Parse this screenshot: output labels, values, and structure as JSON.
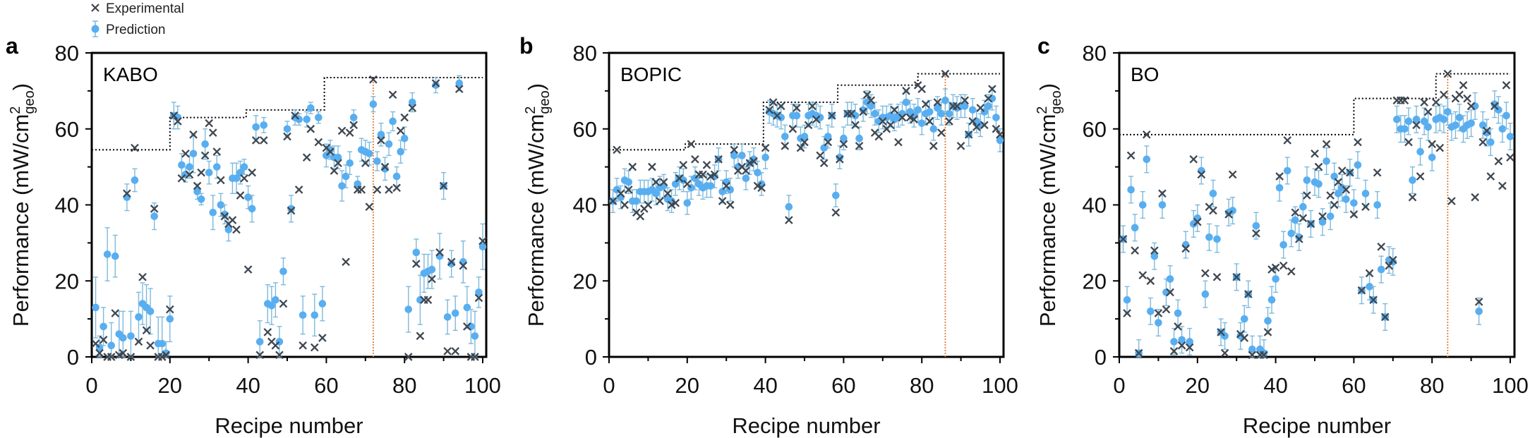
{
  "legend": {
    "experimental": "Experimental",
    "prediction": "Prediction"
  },
  "colors": {
    "prediction": "#58aef0",
    "error_bar": "#7db9dc",
    "experimental": "#3f4750",
    "best_so_far": "#000000",
    "best_marker": "#e0803a"
  },
  "chart_data": [
    {
      "type": "scatter",
      "panel_letter": "a",
      "title": "KABO",
      "xlabel": "Recipe number",
      "ylabel": "Performance (mW/cm",
      "ylabel_sup": "2",
      "ylabel_sub": "geo",
      "ylabel_close": ")",
      "xlim": [
        0,
        100
      ],
      "ylim": [
        0,
        80
      ],
      "xticks": [
        "0",
        "20",
        "40",
        "60",
        "80",
        "100"
      ],
      "yticks": [
        "0",
        "20",
        "40",
        "60",
        "80"
      ],
      "best_recipe": 72,
      "best_so_far_steps": [
        [
          0,
          54.5
        ],
        [
          20,
          63
        ],
        [
          39.5,
          65
        ],
        [
          59.5,
          73.5
        ],
        [
          100,
          73.5
        ]
      ],
      "experimental": [
        3.5,
        1,
        4.5,
        0,
        0,
        11.5,
        0.5,
        1,
        43,
        0,
        55,
        4,
        21,
        7,
        3,
        39,
        0,
        0,
        0.5,
        12.5,
        63.5,
        62,
        47,
        53.5,
        48,
        58.5,
        45,
        48.5,
        53,
        61.5,
        59,
        54,
        46.5,
        37,
        35,
        36,
        33.5,
        42.5,
        47,
        23,
        48.5,
        57,
        0.5,
        57,
        6.5,
        4,
        3,
        0.5,
        14,
        58,
        38.5,
        63.5,
        44,
        3,
        52.5,
        60,
        2.5,
        56.5,
        5,
        55,
        54,
        49,
        51,
        59.5,
        25,
        59,
        61,
        44,
        44,
        51,
        39.5,
        73,
        44,
        57,
        50,
        44,
        69,
        44.5,
        59.5,
        63,
        0,
        65.5,
        24.5,
        5.5,
        15,
        15,
        20.5,
        72,
        27.5,
        45,
        1.5,
        25,
        1.5,
        70.5,
        24,
        8,
        0,
        0,
        15.5,
        30.5
      ],
      "prediction": [
        13,
        2.5,
        8,
        27,
        3,
        26.5,
        6,
        5,
        42,
        5.5,
        46.5,
        10.5,
        14,
        13,
        12,
        37,
        3.5,
        3.5,
        1,
        10,
        63.5,
        63,
        50.5,
        48,
        50,
        53.5,
        43.5,
        41.5,
        56,
        48.5,
        38,
        50,
        40,
        37.5,
        33.5,
        47,
        47,
        48.5,
        50,
        42,
        39,
        60.5,
        4,
        61,
        14,
        13.5,
        15,
        4,
        22.5,
        60,
        39,
        63,
        62.5,
        11,
        62.5,
        65.5,
        11,
        63,
        14,
        53,
        54.5,
        52.5,
        52.5,
        45,
        47.5,
        51,
        63,
        45.5,
        54.5,
        54,
        53.5,
        66.5,
        51.5,
        58.5,
        49.5,
        56,
        62,
        47.5,
        54,
        57.5,
        12.5,
        67,
        27.5,
        15,
        22,
        22.5,
        23,
        71.5,
        26.5,
        45,
        10.5,
        24.5,
        11.5,
        72,
        25,
        13,
        8,
        5.5,
        17,
        29
      ],
      "prediction_error": [
        8,
        3,
        5,
        7,
        6,
        5.5,
        6,
        7,
        3.5,
        6.5,
        3,
        6.5,
        5.5,
        6,
        6,
        3.5,
        7,
        7,
        3,
        6,
        3.5,
        3,
        3,
        2,
        3,
        5,
        2,
        1.5,
        4,
        3,
        4.5,
        3,
        3,
        2.5,
        3,
        4,
        4,
        3,
        2,
        3,
        3.5,
        3,
        5.5,
        2,
        5,
        5,
        4.5,
        4,
        3.5,
        2,
        3.5,
        2,
        1.5,
        5,
        2,
        1.5,
        5.5,
        1.5,
        4.5,
        3,
        2.5,
        3,
        3,
        4,
        3,
        3,
        2,
        2,
        3,
        3,
        3,
        2,
        2.5,
        3,
        3,
        3,
        2.5,
        2.5,
        3,
        3,
        6,
        2.5,
        3.5,
        6.5,
        5,
        4.5,
        5,
        2,
        6,
        3.5,
        4.5,
        3.5,
        4.5,
        2,
        5.5,
        5.5,
        4.5,
        6.5,
        4,
        6
      ]
    },
    {
      "type": "scatter",
      "panel_letter": "b",
      "title": "BOPIC",
      "xlabel": "Recipe number",
      "ylabel": "Performance (mW/cm",
      "ylabel_sup": "2",
      "ylabel_sub": "geo",
      "ylabel_close": ")",
      "xlim": [
        0,
        100
      ],
      "ylim": [
        0,
        80
      ],
      "xticks": [
        "0",
        "20",
        "40",
        "60",
        "80",
        "100"
      ],
      "yticks": [
        "0",
        "20",
        "40",
        "60",
        "80"
      ],
      "best_recipe": 86,
      "best_so_far_steps": [
        [
          0,
          54.5
        ],
        [
          19.5,
          56
        ],
        [
          39.5,
          67
        ],
        [
          58.5,
          71.5
        ],
        [
          79,
          74.5
        ],
        [
          100,
          74.5
        ]
      ],
      "experimental": [
        41,
        54.5,
        43,
        40,
        44,
        50,
        38,
        37,
        39,
        40,
        50,
        46,
        41,
        46,
        43,
        40,
        40.5,
        47,
        50.5,
        45.5,
        56,
        52,
        48,
        48,
        50.5,
        47.5,
        48,
        52,
        41,
        45,
        40,
        54.5,
        49,
        50,
        49,
        51,
        51.5,
        45,
        44.5,
        55,
        65,
        67,
        63.5,
        66,
        55.5,
        36,
        60,
        65.5,
        55,
        56.5,
        61,
        66,
        62.5,
        53,
        51,
        56.5,
        63.5,
        38,
        52,
        56,
        64,
        64,
        61,
        55.5,
        64.5,
        69,
        67.5,
        59,
        58,
        62,
        60,
        61,
        65,
        56.5,
        63,
        70,
        63,
        62.5,
        71.5,
        70.5,
        66.5,
        62,
        55.5,
        67,
        59,
        74.5,
        62,
        66,
        66,
        55.5,
        67.5,
        58.5,
        62,
        60.5,
        65.5,
        61,
        68,
        70.5,
        60,
        58.5
      ],
      "prediction": [
        41,
        44,
        42,
        46.5,
        46,
        41,
        41,
        43.5,
        43.5,
        43.5,
        44,
        43,
        44.5,
        45,
        41.5,
        41,
        45.5,
        47,
        46.5,
        40.5,
        44.5,
        47,
        45.5,
        44.5,
        45,
        45,
        47.5,
        52,
        43.5,
        46,
        44,
        53,
        50,
        53,
        47,
        51,
        52,
        48.5,
        45.5,
        52.5,
        64.5,
        64,
        63.5,
        63,
        58,
        39.5,
        63.5,
        63.5,
        57.5,
        58,
        63.5,
        64,
        63.5,
        63,
        55,
        58,
        63.5,
        42.5,
        52.5,
        57.5,
        64,
        64,
        63.5,
        57.5,
        65,
        67,
        66,
        64,
        62,
        63,
        63,
        63.5,
        62.5,
        63.5,
        64,
        67,
        64.5,
        63.5,
        65,
        61.5,
        64,
        64.5,
        60,
        65.5,
        64,
        67.5,
        64,
        66,
        65.5,
        66,
        66,
        58.5,
        65,
        62,
        61,
        64.5,
        66,
        68,
        63,
        57
      ],
      "prediction_error": 3
    },
    {
      "type": "scatter",
      "panel_letter": "c",
      "title": "BO",
      "xlabel": "Recipe number",
      "ylabel": "Performance (mW/cm",
      "ylabel_sup": "2",
      "ylabel_sub": "geo",
      "ylabel_close": ")",
      "xlim": [
        0,
        100
      ],
      "ylim": [
        0,
        80
      ],
      "xticks": [
        "0",
        "20",
        "40",
        "60",
        "80",
        "100"
      ],
      "yticks": [
        "0",
        "20",
        "40",
        "60",
        "80"
      ],
      "best_recipe": 84,
      "best_so_far_steps": [
        [
          0,
          58.5
        ],
        [
          60,
          68
        ],
        [
          81,
          74.5
        ],
        [
          100,
          74.5
        ]
      ],
      "experimental": [
        31,
        11.5,
        53,
        28,
        1,
        21.5,
        58.5,
        20,
        28,
        11.5,
        43,
        12.5,
        17,
        1.5,
        8,
        3,
        28.5,
        2.5,
        52,
        35.5,
        48,
        22,
        39.5,
        38.5,
        21,
        6.5,
        1,
        37.5,
        48,
        21,
        6,
        5,
        16.5,
        0.5,
        32.5,
        0.5,
        0.5,
        6.5,
        23,
        23.5,
        47.5,
        24,
        57,
        22.5,
        38,
        31,
        36.5,
        42.5,
        35,
        53.5,
        50,
        37,
        56,
        42.5,
        40,
        46,
        49,
        44,
        48.5,
        37.5,
        56.5,
        17.5,
        39.5,
        22,
        15,
        48.5,
        29,
        10.5,
        24,
        25.5,
        67.5,
        67.5,
        67.5,
        56.5,
        42,
        61,
        47.5,
        67,
        64.5,
        56,
        67,
        55,
        69,
        74.5,
        41,
        68,
        69,
        71.5,
        68,
        66,
        42,
        14.5,
        56.5,
        59.5,
        47.5,
        66,
        51.5,
        45,
        71.5,
        52.5
      ],
      "prediction": [
        31,
        15,
        44,
        34,
        1,
        40,
        52,
        12,
        26.5,
        9,
        40,
        17,
        20.5,
        4,
        11.5,
        4.5,
        29.5,
        4,
        35,
        36.5,
        49,
        16.5,
        31.5,
        43,
        31,
        6.5,
        5.5,
        38,
        38.5,
        21,
        5.5,
        10,
        16.5,
        2,
        34.5,
        2,
        1,
        9.5,
        15,
        20.5,
        44.5,
        29.5,
        49,
        32.5,
        36,
        31.5,
        39.5,
        46.5,
        35,
        46,
        45.5,
        35.5,
        51.5,
        37,
        47.5,
        43,
        44.5,
        41.5,
        48.5,
        40.5,
        50.5,
        17.5,
        43,
        18.5,
        15,
        40,
        23,
        10.5,
        25.5,
        25,
        62.5,
        60,
        60,
        62,
        46.5,
        62.5,
        54,
        62,
        60.5,
        52.5,
        62.5,
        63,
        62.5,
        64.5,
        60.5,
        61,
        63,
        60,
        61,
        61.5,
        66,
        12,
        61,
        59,
        56.5,
        66.5,
        65,
        60,
        63.5,
        58
      ],
      "prediction_error": 3.5
    }
  ]
}
